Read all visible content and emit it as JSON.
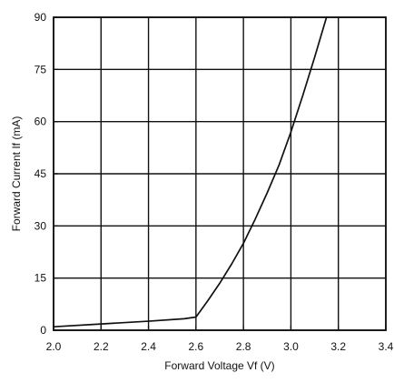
{
  "chart_data": {
    "type": "line",
    "title": "",
    "xlabel": "Forward Voltage Vf (V)",
    "ylabel": "Forward Current If (mA)",
    "xlim": [
      2.0,
      3.4
    ],
    "ylim": [
      0,
      90
    ],
    "grid": true,
    "x_ticks": [
      2.0,
      2.2,
      2.4,
      2.6,
      2.8,
      3.0,
      3.2,
      3.4
    ],
    "x_tick_labels": [
      "2.0",
      "2.2",
      "2.4",
      "2.6",
      "2.8",
      "3.0",
      "3.2",
      "3.4"
    ],
    "y_ticks": [
      0,
      15,
      30,
      45,
      60,
      75,
      90
    ],
    "y_tick_labels": [
      "0",
      "15",
      "30",
      "45",
      "60",
      "75",
      "90"
    ],
    "series": [
      {
        "x": [
          2.0,
          2.2,
          2.4,
          2.55,
          2.6,
          2.65,
          2.7,
          2.75,
          2.8,
          2.85,
          2.9,
          2.95,
          3.0,
          3.05,
          3.1,
          3.15
        ],
        "y": [
          1.0,
          1.8,
          2.6,
          3.3,
          3.8,
          8.5,
          13.5,
          19.0,
          25.0,
          32.0,
          39.5,
          47.5,
          57.0,
          67.5,
          78.5,
          90.0
        ],
        "color": "#111111"
      }
    ]
  }
}
